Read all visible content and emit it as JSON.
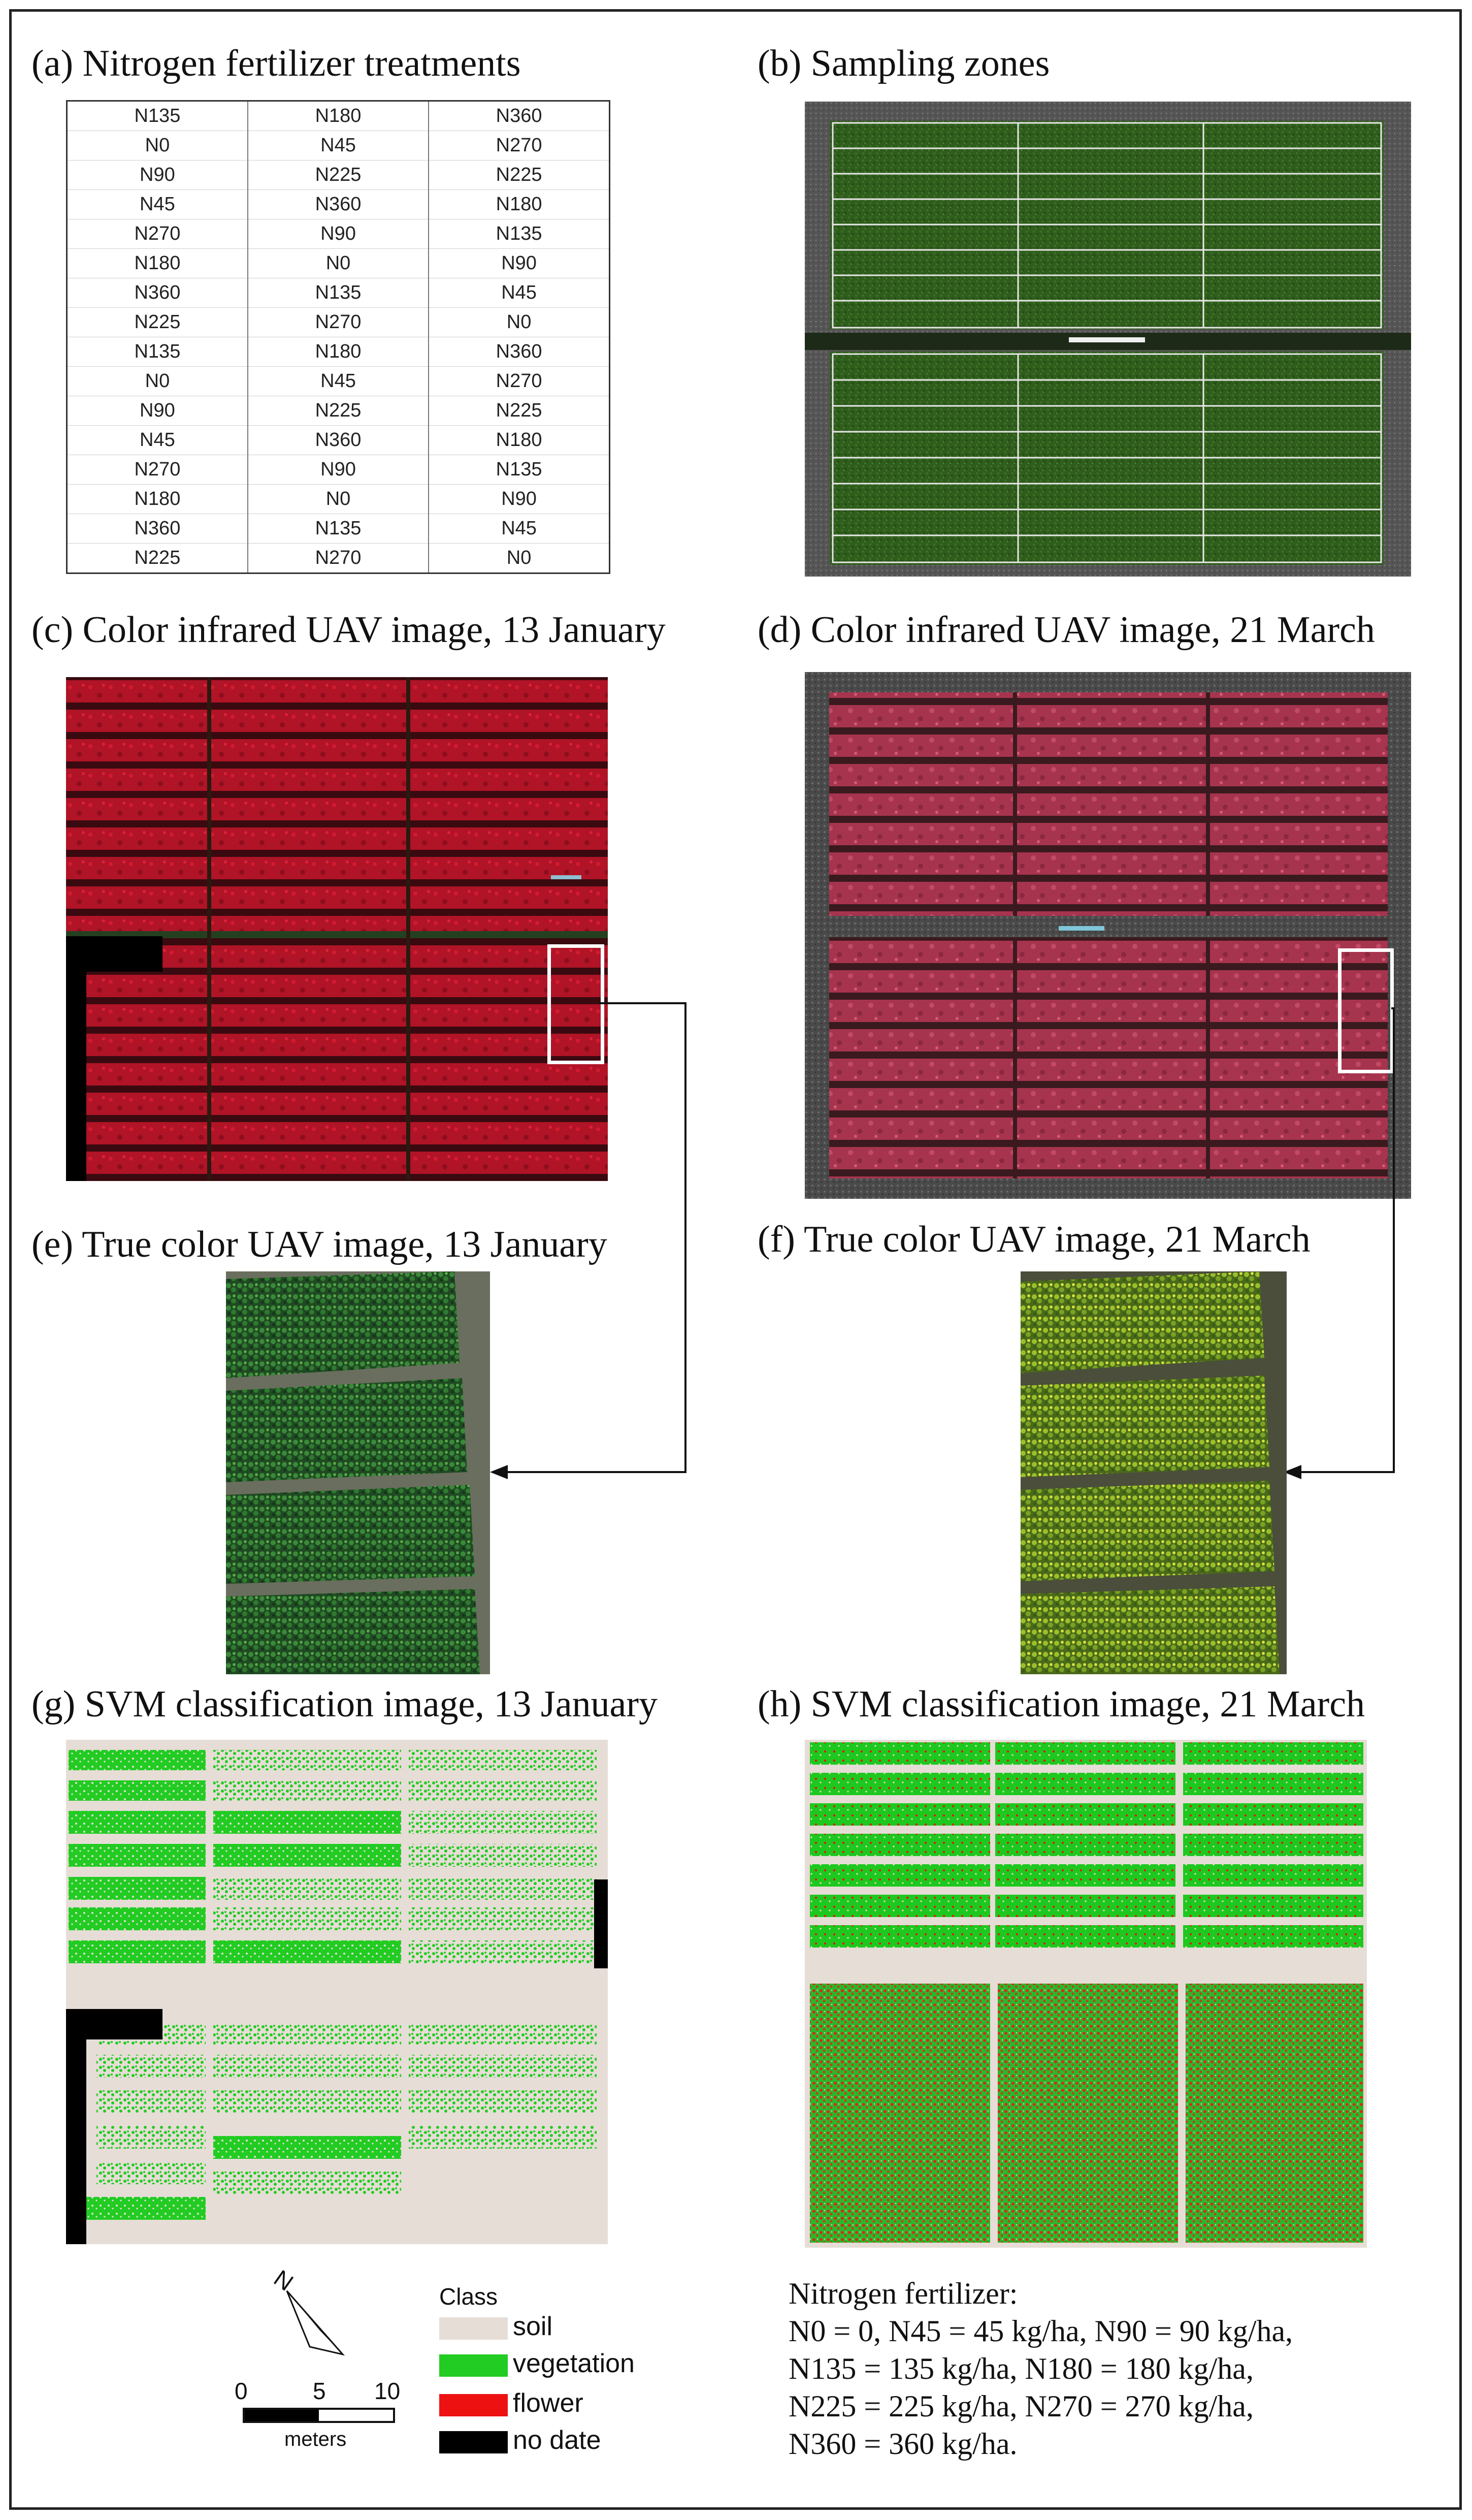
{
  "panels": {
    "a": {
      "title": "(a) Nitrogen fertilizer treatments"
    },
    "b": {
      "title": "(b)  Sampling zones"
    },
    "c": {
      "title": "(c) Color infrared UAV image, 13 January"
    },
    "d": {
      "title": "(d) Color infrared UAV image, 21 March"
    },
    "e": {
      "title": "(e) True color UAV image, 13 January"
    },
    "f": {
      "title": "(f) True color UAV image, 21 March"
    },
    "g": {
      "title": "(g) SVM classification image, 13 January"
    },
    "h": {
      "title": "(h) SVM classification image, 21 March"
    }
  },
  "treatments": [
    [
      "N135",
      "N180",
      "N360"
    ],
    [
      "N0",
      "N45",
      "N270"
    ],
    [
      "N90",
      "N225",
      "N225"
    ],
    [
      "N45",
      "N360",
      "N180"
    ],
    [
      "N270",
      "N90",
      "N135"
    ],
    [
      "N180",
      "N0",
      "N90"
    ],
    [
      "N360",
      "N135",
      "N45"
    ],
    [
      "N225",
      "N270",
      "N0"
    ],
    [
      "N135",
      "N180",
      "N360"
    ],
    [
      "N0",
      "N45",
      "N270"
    ],
    [
      "N90",
      "N225",
      "N225"
    ],
    [
      "N45",
      "N360",
      "N180"
    ],
    [
      "N270",
      "N90",
      "N135"
    ],
    [
      "N180",
      "N0",
      "N90"
    ],
    [
      "N360",
      "N135",
      "N45"
    ],
    [
      "N225",
      "N270",
      "N0"
    ]
  ],
  "north_arrow": {
    "label": "N"
  },
  "scale_bar": {
    "ticks": [
      "0",
      "5",
      "10"
    ],
    "unit": "meters"
  },
  "legend": {
    "title": "Class",
    "items": [
      {
        "label": "soil",
        "color": "#e6ddd6"
      },
      {
        "label": "vegetation",
        "color": "#22cc22"
      },
      {
        "label": "flower",
        "color": "#ee1111"
      },
      {
        "label": "no date",
        "color": "#000000"
      }
    ]
  },
  "note": {
    "lines": [
      "Nitrogen fertilizer:",
      "N0 = 0, N45 = 45 kg/ha, N90 = 90 kg/ha,",
      "N135 = 135 kg/ha, N180 = 180 kg/ha,",
      "N225 = 225 kg/ha, N270 = 270 kg/ha,",
      "N360 = 360 kg/ha."
    ]
  }
}
